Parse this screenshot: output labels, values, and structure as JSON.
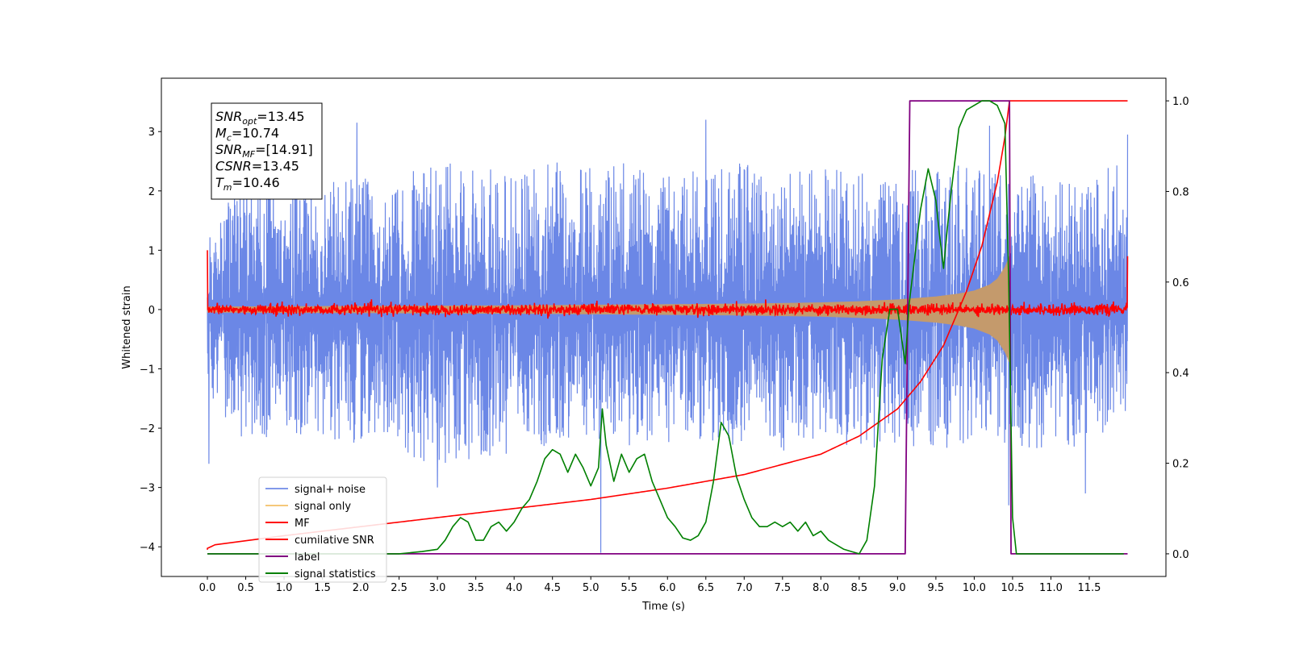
{
  "chart_data": {
    "type": "line",
    "xlabel": "Time (s)",
    "ylabel": "Whitened strain",
    "xlim": [
      -0.6,
      12.5
    ],
    "ylim": [
      -4.5,
      3.9
    ],
    "y2lim": [
      -0.05,
      1.05
    ],
    "x_ticks": [
      0.0,
      0.5,
      1.0,
      1.5,
      2.0,
      2.5,
      3.0,
      3.5,
      4.0,
      4.5,
      5.0,
      5.5,
      6.0,
      6.5,
      7.0,
      7.5,
      8.0,
      8.5,
      9.0,
      9.5,
      10.0,
      10.5,
      11.0,
      11.5
    ],
    "x_tick_labels": [
      "0.0",
      "0.5",
      "1.0",
      "1.5",
      "2.0",
      "2.5",
      "3.0",
      "3.5",
      "4.0",
      "4.5",
      "5.0",
      "5.5",
      "6.0",
      "6.5",
      "7.0",
      "7.5",
      "8.0",
      "8.5",
      "9.0",
      "9.5",
      "10.0",
      "10.5",
      "11.0",
      "11.5"
    ],
    "y_ticks": [
      -4,
      -3,
      -2,
      -1,
      0,
      1,
      2,
      3
    ],
    "y_tick_labels": [
      "−4",
      "−3",
      "−2",
      "−1",
      "0",
      "1",
      "2",
      "3"
    ],
    "y2_ticks": [
      0.0,
      0.2,
      0.4,
      0.6,
      0.8,
      1.0
    ],
    "y2_tick_labels": [
      "0.0",
      "0.2",
      "0.4",
      "0.6",
      "0.8",
      "1.0"
    ],
    "grid": false,
    "legend_position": "lower-left",
    "annotation": {
      "lines": [
        {
          "var": "SNR",
          "sub": "opt",
          "value": "=13.45"
        },
        {
          "var": "M",
          "sub": "c",
          "value": "=10.74"
        },
        {
          "var": "SNR",
          "sub": "MF",
          "value": "=[14.91]"
        },
        {
          "var": "CSNR",
          "sub": "",
          "value": "=13.45"
        },
        {
          "var": "T",
          "sub": "m",
          "value": "=10.46"
        }
      ]
    },
    "series": [
      {
        "name": "signal+ noise",
        "color": "#6b87e6",
        "axis": "left",
        "kind": "noise_band",
        "x_range": [
          0.0,
          12.0
        ],
        "upper_envelope_x": [
          0.0,
          0.5,
          1.0,
          1.5,
          2.0,
          2.5,
          3.0,
          3.5,
          4.0,
          4.5,
          5.0,
          5.5,
          6.0,
          6.5,
          7.0,
          7.5,
          8.0,
          8.5,
          9.0,
          9.5,
          10.0,
          10.5,
          11.0,
          11.5,
          12.0
        ],
        "upper_envelope_y": [
          1.2,
          2.5,
          2.2,
          2.3,
          2.2,
          2.3,
          2.5,
          2.4,
          2.3,
          2.5,
          2.4,
          2.5,
          2.3,
          2.4,
          2.5,
          2.3,
          2.4,
          2.3,
          2.4,
          2.4,
          2.5,
          2.4,
          2.2,
          2.4,
          2.6
        ],
        "lower_envelope_y": [
          -1.4,
          -2.3,
          -2.2,
          -2.2,
          -2.3,
          -2.5,
          -2.6,
          -2.6,
          -2.4,
          -2.3,
          -2.2,
          -2.5,
          -2.3,
          -2.3,
          -2.3,
          -2.4,
          -2.2,
          -2.4,
          -2.3,
          -2.4,
          -2.3,
          -2.4,
          -2.4,
          -2.3,
          -1.7
        ],
        "spikes": [
          [
            1.95,
            3.15
          ],
          [
            10.2,
            3.1
          ],
          [
            6.5,
            3.2
          ],
          [
            5.13,
            -4.1
          ],
          [
            10.45,
            -3.3
          ],
          [
            11.45,
            -3.1
          ],
          [
            0.02,
            -2.6
          ],
          [
            3.0,
            -3.0
          ],
          [
            12.0,
            2.95
          ]
        ]
      },
      {
        "name": "signal only",
        "color": "#e8a96a",
        "axis": "left",
        "kind": "chirp",
        "x": [
          0.0,
          2.0,
          4.0,
          6.0,
          7.0,
          8.0,
          8.5,
          9.0,
          9.5,
          9.8,
          10.0,
          10.2,
          10.3,
          10.4,
          10.46
        ],
        "envelope": [
          0.05,
          0.06,
          0.07,
          0.09,
          0.1,
          0.12,
          0.14,
          0.17,
          0.22,
          0.27,
          0.32,
          0.42,
          0.52,
          0.72,
          0.9
        ]
      },
      {
        "name": "MF",
        "color": "#ff0000",
        "axis": "left",
        "kind": "noise_line",
        "x_range": [
          0.0,
          12.0
        ],
        "level": 0.0,
        "amplitude": 0.1,
        "start_value": 1.0,
        "end_value": 0.9
      },
      {
        "name": "cumilative SNR",
        "color": "#ff0000",
        "axis": "right",
        "x": [
          0.0,
          0.1,
          1.0,
          2.0,
          3.0,
          4.0,
          5.0,
          6.0,
          7.0,
          8.0,
          8.5,
          9.0,
          9.3,
          9.6,
          9.9,
          10.1,
          10.3,
          10.4,
          10.46,
          10.5,
          11.0,
          12.0
        ],
        "y": [
          0.012,
          0.02,
          0.04,
          0.06,
          0.08,
          0.1,
          0.12,
          0.145,
          0.175,
          0.22,
          0.26,
          0.32,
          0.38,
          0.46,
          0.58,
          0.68,
          0.82,
          0.92,
          1.0,
          1.0,
          1.0,
          1.0
        ]
      },
      {
        "name": "label",
        "color": "#800080",
        "axis": "right",
        "x": [
          0.0,
          9.1,
          9.16,
          10.46,
          10.48,
          12.0
        ],
        "y": [
          0.0,
          0.0,
          1.0,
          1.0,
          0.0,
          0.0
        ]
      },
      {
        "name": "signal statistics",
        "color": "#008000",
        "axis": "right",
        "x": [
          0.0,
          0.5,
          1.0,
          1.5,
          2.0,
          2.5,
          2.8,
          3.0,
          3.1,
          3.2,
          3.3,
          3.4,
          3.5,
          3.6,
          3.7,
          3.8,
          3.9,
          4.0,
          4.1,
          4.2,
          4.3,
          4.4,
          4.5,
          4.6,
          4.7,
          4.8,
          4.9,
          5.0,
          5.1,
          5.15,
          5.2,
          5.3,
          5.4,
          5.5,
          5.6,
          5.7,
          5.8,
          5.9,
          6.0,
          6.1,
          6.2,
          6.3,
          6.4,
          6.5,
          6.6,
          6.7,
          6.8,
          6.9,
          7.0,
          7.1,
          7.2,
          7.3,
          7.4,
          7.5,
          7.6,
          7.7,
          7.8,
          7.9,
          8.0,
          8.1,
          8.2,
          8.3,
          8.4,
          8.5,
          8.6,
          8.7,
          8.8,
          8.9,
          9.0,
          9.05,
          9.1,
          9.15,
          9.2,
          9.3,
          9.4,
          9.5,
          9.55,
          9.6,
          9.65,
          9.7,
          9.8,
          9.9,
          10.0,
          10.1,
          10.2,
          10.3,
          10.4,
          10.45,
          10.5,
          10.55,
          10.6,
          10.8,
          11.0,
          11.5,
          11.95
        ],
        "y": [
          0.0,
          0.0,
          0.0,
          0.0,
          0.0,
          0.0,
          0.005,
          0.01,
          0.03,
          0.06,
          0.08,
          0.07,
          0.03,
          0.03,
          0.06,
          0.07,
          0.05,
          0.07,
          0.1,
          0.12,
          0.16,
          0.21,
          0.23,
          0.22,
          0.18,
          0.22,
          0.19,
          0.15,
          0.19,
          0.32,
          0.24,
          0.16,
          0.22,
          0.18,
          0.21,
          0.22,
          0.16,
          0.12,
          0.08,
          0.06,
          0.035,
          0.03,
          0.04,
          0.07,
          0.16,
          0.29,
          0.26,
          0.17,
          0.12,
          0.08,
          0.06,
          0.06,
          0.07,
          0.06,
          0.07,
          0.05,
          0.07,
          0.04,
          0.05,
          0.03,
          0.02,
          0.01,
          0.005,
          0.0,
          0.03,
          0.15,
          0.43,
          0.54,
          0.54,
          0.48,
          0.42,
          0.55,
          0.62,
          0.76,
          0.85,
          0.78,
          0.7,
          0.63,
          0.72,
          0.8,
          0.94,
          0.98,
          0.99,
          1.0,
          1.0,
          0.99,
          0.95,
          0.6,
          0.08,
          0.0,
          0.0,
          0.0,
          0.0,
          0.0,
          0.0
        ]
      }
    ]
  }
}
